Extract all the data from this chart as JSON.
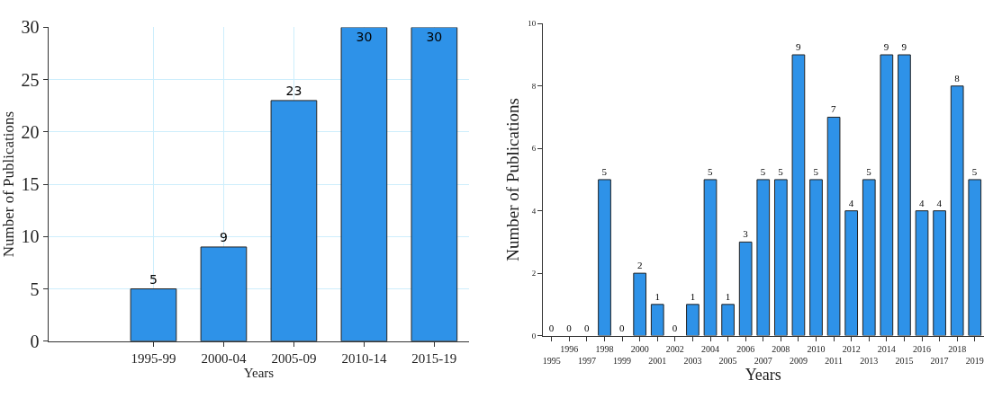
{
  "chart_data": [
    {
      "type": "bar",
      "categories": [
        "1995-99",
        "2000-04",
        "2005-09",
        "2010-14",
        "2015-19"
      ],
      "values": [
        5,
        9,
        23,
        30,
        30
      ],
      "color": "#2e92e8",
      "xlabel": "Years",
      "ylabel": "Number of Publications",
      "ylim": [
        0,
        30
      ],
      "yticks": [
        0,
        5,
        10,
        15,
        20,
        25,
        30
      ],
      "grid": true,
      "data_labels": true
    },
    {
      "type": "bar",
      "categories": [
        "1995",
        "1996",
        "1997",
        "1998",
        "1999",
        "2000",
        "2001",
        "2002",
        "2003",
        "2004",
        "2005",
        "2006",
        "2007",
        "2008",
        "2009",
        "2010",
        "2011",
        "2012",
        "2013",
        "2014",
        "2015",
        "2016",
        "2017",
        "2018",
        "2019"
      ],
      "values": [
        0,
        0,
        0,
        5,
        0,
        2,
        1,
        0,
        1,
        5,
        1,
        3,
        5,
        5,
        9,
        5,
        7,
        4,
        5,
        9,
        9,
        4,
        4,
        8,
        5
      ],
      "color": "#2e92e8",
      "xlabel": "Years",
      "ylabel": "Number of Publications",
      "ylim": [
        0,
        10
      ],
      "yticks": [
        0,
        2,
        4,
        6,
        8,
        10
      ],
      "grid": false,
      "data_labels": true
    }
  ]
}
